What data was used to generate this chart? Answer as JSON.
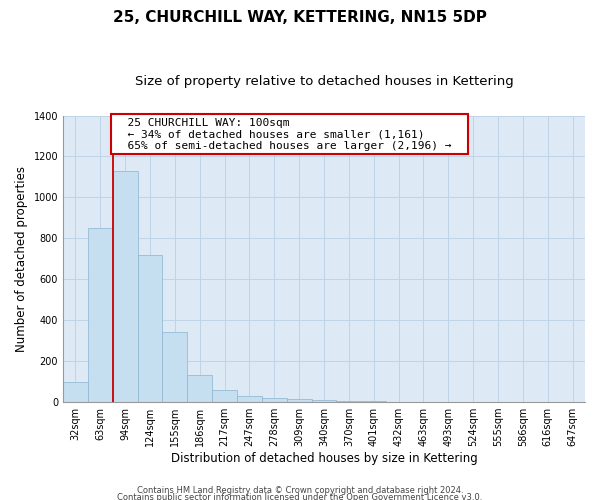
{
  "title": "25, CHURCHILL WAY, KETTERING, NN15 5DP",
  "subtitle": "Size of property relative to detached houses in Kettering",
  "xlabel": "Distribution of detached houses by size in Kettering",
  "ylabel": "Number of detached properties",
  "bar_labels": [
    "32sqm",
    "63sqm",
    "94sqm",
    "124sqm",
    "155sqm",
    "186sqm",
    "217sqm",
    "247sqm",
    "278sqm",
    "309sqm",
    "340sqm",
    "370sqm",
    "401sqm",
    "432sqm",
    "463sqm",
    "493sqm",
    "524sqm",
    "555sqm",
    "586sqm",
    "616sqm",
    "647sqm"
  ],
  "bar_values": [
    100,
    850,
    1130,
    720,
    340,
    130,
    60,
    30,
    20,
    15,
    10,
    5,
    5,
    0,
    0,
    0,
    0,
    0,
    0,
    0,
    0
  ],
  "bar_color": "#c5dff0",
  "bar_edge_color": "#8ab4d0",
  "ylim": [
    0,
    1400
  ],
  "yticks": [
    0,
    200,
    400,
    600,
    800,
    1000,
    1200,
    1400
  ],
  "grid_color": "#c0d4e8",
  "bg_color": "#ddeaf5",
  "vline_x": 1.5,
  "vline_color": "#cc0000",
  "annotation_title": "25 CHURCHILL WAY: 100sqm",
  "annotation_line1": "← 34% of detached houses are smaller (1,161)",
  "annotation_line2": "65% of semi-detached houses are larger (2,196) →",
  "annotation_box_color": "#cc0000",
  "footer_line1": "Contains HM Land Registry data © Crown copyright and database right 2024.",
  "footer_line2": "Contains public sector information licensed under the Open Government Licence v3.0.",
  "title_fontsize": 11,
  "subtitle_fontsize": 9.5,
  "tick_fontsize": 7,
  "ylabel_fontsize": 8.5,
  "xlabel_fontsize": 8.5,
  "annotation_fontsize": 8
}
